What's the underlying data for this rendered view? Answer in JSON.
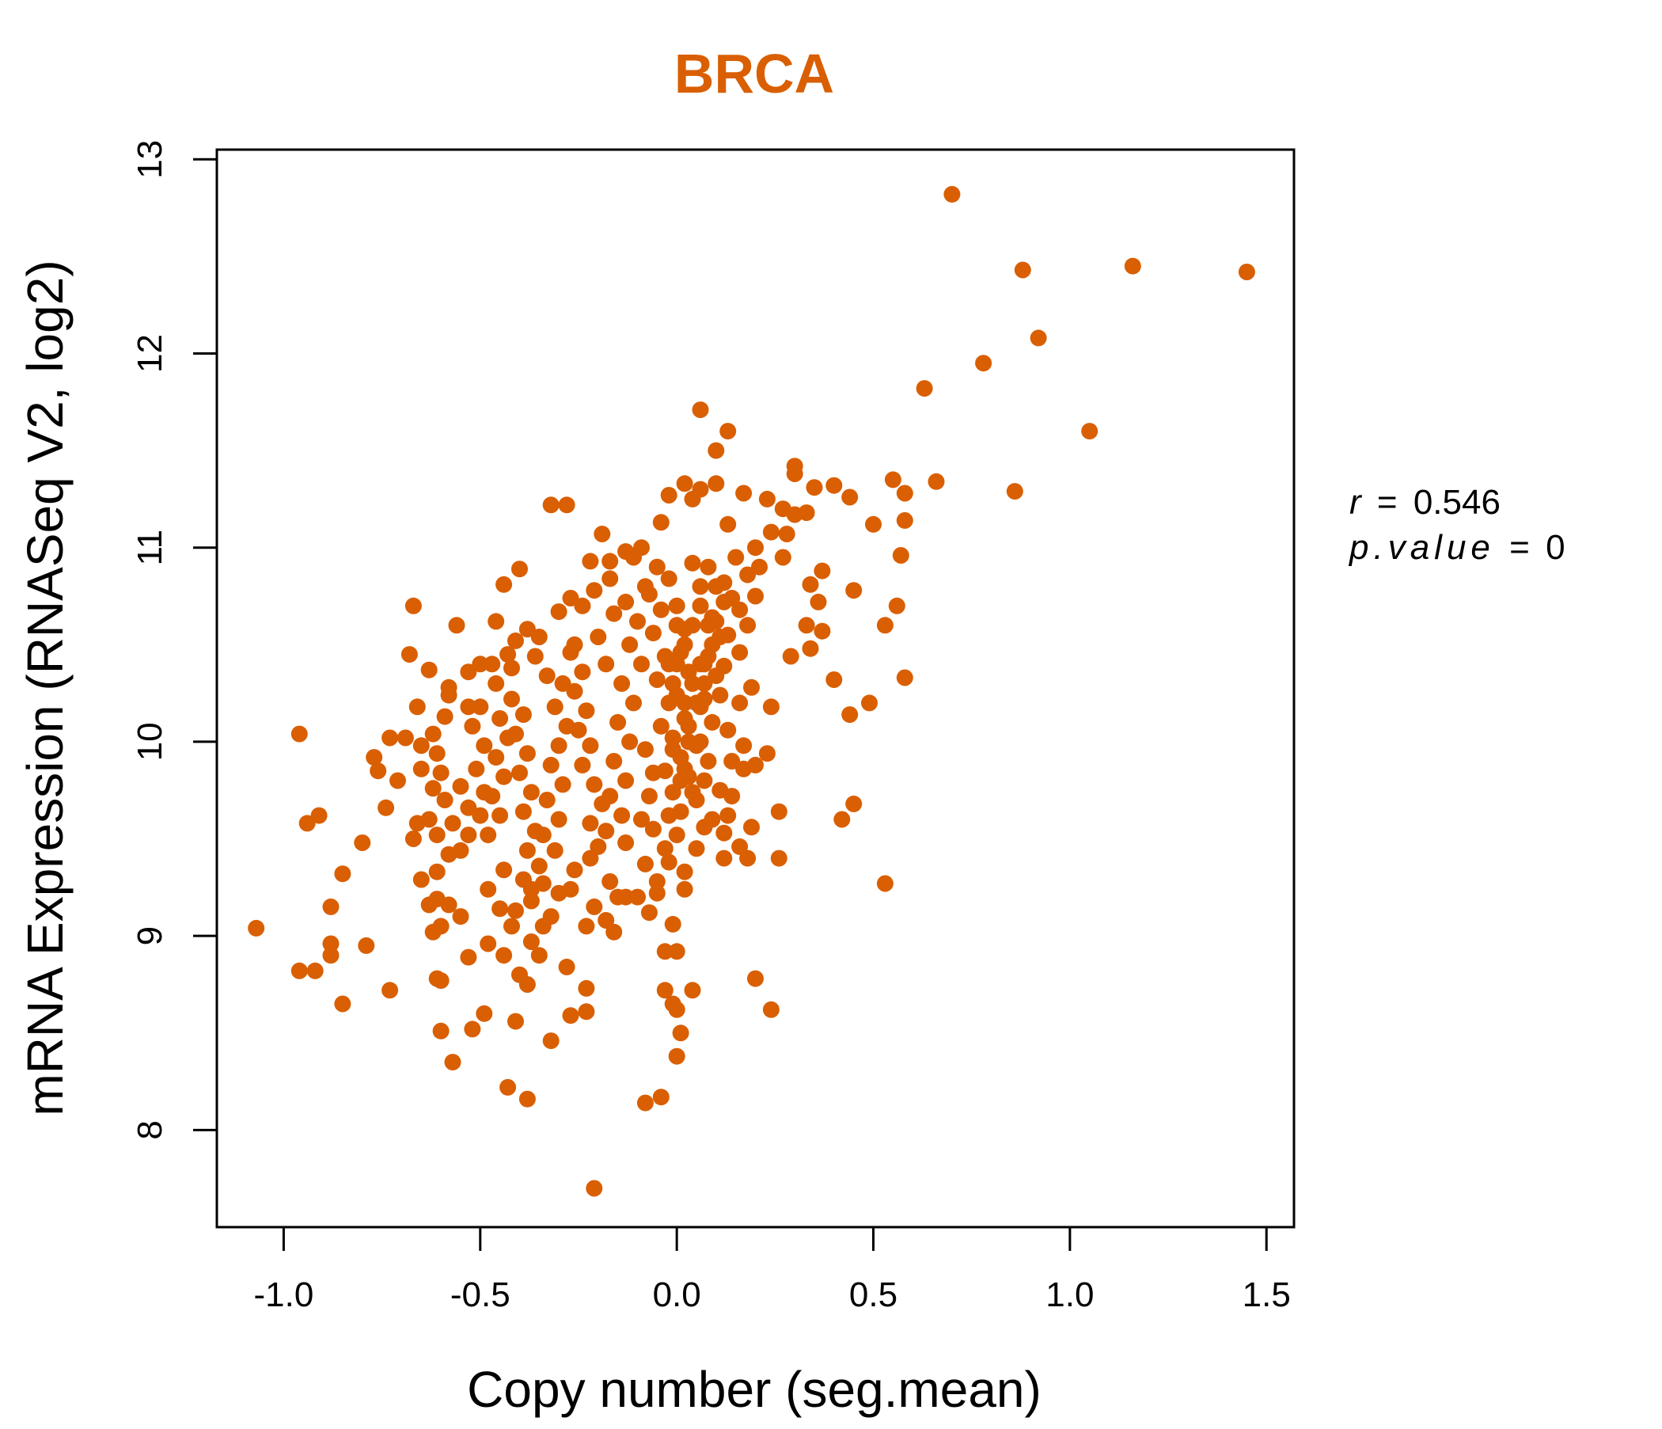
{
  "chart_data": {
    "type": "scatter",
    "title": "BRCA",
    "xlabel": "Copy number (seg.mean)",
    "ylabel": "mRNA Expression (RNASeq V2, log2)",
    "xlim": [
      -1.17,
      1.57
    ],
    "ylim": [
      7.5,
      13.05
    ],
    "x_ticks": [
      -1.0,
      -0.5,
      0.0,
      0.5,
      1.0,
      1.5
    ],
    "x_tick_labels": [
      "-1.0",
      "-0.5",
      "0.0",
      "0.5",
      "1.0",
      "1.5"
    ],
    "y_ticks": [
      8,
      9,
      10,
      11,
      12,
      13
    ],
    "y_tick_labels": [
      "8",
      "9",
      "10",
      "11",
      "12",
      "13"
    ],
    "grid": false,
    "legend": "none",
    "point_color": "#D95F02",
    "title_color": "#D95F02",
    "annotation": {
      "r_label": "r",
      "r_value": "0.546",
      "p_label": "p.value",
      "p_value": "0"
    },
    "points": [
      [
        0.7,
        12.82
      ],
      [
        0.88,
        12.43
      ],
      [
        1.16,
        12.45
      ],
      [
        1.45,
        12.42
      ],
      [
        0.92,
        12.08
      ],
      [
        0.78,
        11.95
      ],
      [
        0.63,
        11.82
      ],
      [
        1.05,
        11.6
      ],
      [
        0.06,
        11.71
      ],
      [
        0.13,
        11.6
      ],
      [
        0.1,
        11.5
      ],
      [
        0.3,
        11.42
      ],
      [
        0.55,
        11.35
      ],
      [
        0.66,
        11.34
      ],
      [
        0.86,
        11.29
      ],
      [
        0.58,
        11.28
      ],
      [
        0.4,
        11.32
      ],
      [
        0.44,
        11.26
      ],
      [
        0.5,
        11.12
      ],
      [
        0.58,
        11.14
      ],
      [
        0.57,
        10.96
      ],
      [
        0.45,
        10.78
      ],
      [
        0.56,
        10.7
      ],
      [
        0.53,
        10.6
      ],
      [
        0.58,
        10.33
      ],
      [
        0.49,
        10.2
      ],
      [
        0.44,
        10.14
      ],
      [
        0.4,
        10.32
      ],
      [
        0.45,
        9.68
      ],
      [
        0.42,
        9.6
      ],
      [
        0.53,
        9.27
      ],
      [
        -0.32,
        11.22
      ],
      [
        -0.28,
        11.22
      ],
      [
        -0.19,
        11.07
      ],
      [
        -0.22,
        10.93
      ],
      [
        -0.4,
        10.89
      ],
      [
        -0.44,
        10.81
      ],
      [
        -0.67,
        10.7
      ],
      [
        -0.56,
        10.6
      ],
      [
        -0.46,
        10.62
      ],
      [
        -0.68,
        10.45
      ],
      [
        -0.5,
        10.4
      ],
      [
        -0.63,
        10.37
      ],
      [
        -0.58,
        10.28
      ],
      [
        -0.66,
        10.18
      ],
      [
        -0.69,
        10.02
      ],
      [
        -0.73,
        10.02
      ],
      [
        -0.77,
        9.92
      ],
      [
        -0.96,
        10.04
      ],
      [
        -0.76,
        9.85
      ],
      [
        -0.71,
        9.8
      ],
      [
        -0.74,
        9.66
      ],
      [
        -0.94,
        9.58
      ],
      [
        -0.91,
        9.62
      ],
      [
        -0.8,
        9.48
      ],
      [
        -0.85,
        9.32
      ],
      [
        -0.88,
        9.15
      ],
      [
        -1.07,
        9.04
      ],
      [
        -0.88,
        8.96
      ],
      [
        -0.88,
        8.9
      ],
      [
        -0.79,
        8.95
      ],
      [
        -0.96,
        8.82
      ],
      [
        -0.92,
        8.82
      ],
      [
        -0.73,
        8.72
      ],
      [
        -0.85,
        8.65
      ],
      [
        -0.61,
        8.78
      ],
      [
        -0.6,
        8.77
      ],
      [
        -0.6,
        8.51
      ],
      [
        -0.52,
        8.52
      ],
      [
        -0.57,
        8.35
      ],
      [
        -0.49,
        8.6
      ],
      [
        -0.43,
        8.22
      ],
      [
        -0.38,
        8.16
      ],
      [
        -0.41,
        8.56
      ],
      [
        -0.32,
        8.46
      ],
      [
        -0.27,
        8.59
      ],
      [
        -0.23,
        8.61
      ],
      [
        -0.23,
        8.73
      ],
      [
        -0.28,
        8.84
      ],
      [
        -0.21,
        7.7
      ],
      [
        -0.08,
        8.14
      ],
      [
        -0.04,
        8.17
      ],
      [
        -0.03,
        8.72
      ],
      [
        -0.01,
        8.65
      ],
      [
        0.0,
        8.62
      ],
      [
        0.04,
        8.72
      ],
      [
        0.01,
        8.5
      ],
      [
        0.0,
        8.38
      ],
      [
        -0.01,
        9.06
      ],
      [
        -0.03,
        8.92
      ],
      [
        0.0,
        8.92
      ],
      [
        0.2,
        8.78
      ],
      [
        0.24,
        8.62
      ],
      [
        0.26,
        9.4
      ],
      [
        0.19,
        9.56
      ],
      [
        0.16,
        9.46
      ],
      [
        0.26,
        9.64
      ],
      [
        0.2,
        9.88
      ],
      [
        0.23,
        9.94
      ],
      [
        0.24,
        10.18
      ],
      [
        0.19,
        10.28
      ],
      [
        0.29,
        10.44
      ],
      [
        0.33,
        10.6
      ],
      [
        0.34,
        10.48
      ],
      [
        0.37,
        10.57
      ],
      [
        0.36,
        10.72
      ],
      [
        0.37,
        10.88
      ],
      [
        0.34,
        10.81
      ],
      [
        0.33,
        11.18
      ],
      [
        0.3,
        11.17
      ],
      [
        0.27,
        10.95
      ],
      [
        0.27,
        11.2
      ],
      [
        0.23,
        11.25
      ],
      [
        0.3,
        11.38
      ],
      [
        0.35,
        11.31
      ],
      [
        0.28,
        11.07
      ],
      [
        0.24,
        11.08
      ],
      [
        0.2,
        11.0
      ],
      [
        0.13,
        11.12
      ],
      [
        0.17,
        11.28
      ],
      [
        0.1,
        11.33
      ],
      [
        0.06,
        11.3
      ],
      [
        0.04,
        11.25
      ],
      [
        0.02,
        11.33
      ],
      [
        -0.02,
        11.27
      ],
      [
        -0.04,
        11.13
      ],
      [
        -0.09,
        11.0
      ],
      [
        -0.13,
        10.98
      ],
      [
        -0.11,
        10.95
      ],
      [
        -0.17,
        10.93
      ],
      [
        -0.17,
        10.84
      ],
      [
        -0.21,
        10.78
      ],
      [
        -0.24,
        10.7
      ],
      [
        -0.27,
        10.74
      ],
      [
        -0.3,
        10.67
      ],
      [
        -0.38,
        10.58
      ],
      [
        -0.41,
        10.52
      ],
      [
        -0.35,
        10.54
      ],
      [
        -0.43,
        10.45
      ],
      [
        -0.47,
        10.4
      ],
      [
        -0.53,
        10.36
      ],
      [
        -0.58,
        10.24
      ],
      [
        -0.53,
        10.18
      ],
      [
        -0.59,
        10.13
      ],
      [
        -0.62,
        10.04
      ],
      [
        -0.65,
        9.98
      ],
      [
        -0.61,
        9.94
      ],
      [
        -0.65,
        9.86
      ],
      [
        -0.6,
        9.84
      ],
      [
        -0.62,
        9.76
      ],
      [
        -0.55,
        9.77
      ],
      [
        -0.59,
        9.7
      ],
      [
        -0.53,
        9.66
      ],
      [
        -0.57,
        9.58
      ],
      [
        -0.53,
        9.52
      ],
      [
        -0.61,
        9.52
      ],
      [
        -0.67,
        9.5
      ],
      [
        -0.66,
        9.58
      ],
      [
        -0.63,
        9.6
      ],
      [
        -0.58,
        9.42
      ],
      [
        -0.55,
        9.44
      ],
      [
        -0.61,
        9.33
      ],
      [
        -0.65,
        9.29
      ],
      [
        -0.61,
        9.19
      ],
      [
        -0.63,
        9.16
      ],
      [
        -0.58,
        9.16
      ],
      [
        -0.55,
        9.1
      ],
      [
        -0.6,
        9.05
      ],
      [
        -0.62,
        9.02
      ],
      [
        -0.53,
        8.89
      ],
      [
        -0.48,
        8.96
      ],
      [
        -0.44,
        8.9
      ],
      [
        -0.37,
        8.97
      ],
      [
        -0.4,
        8.8
      ],
      [
        -0.38,
        8.75
      ],
      [
        -0.35,
        8.9
      ],
      [
        -0.34,
        9.05
      ],
      [
        -0.32,
        9.1
      ],
      [
        -0.37,
        9.18
      ],
      [
        -0.41,
        9.13
      ],
      [
        -0.45,
        9.14
      ],
      [
        -0.42,
        9.05
      ],
      [
        -0.48,
        9.24
      ],
      [
        -0.44,
        9.34
      ],
      [
        -0.39,
        9.29
      ],
      [
        -0.37,
        9.24
      ],
      [
        -0.34,
        9.27
      ],
      [
        -0.3,
        9.22
      ],
      [
        -0.27,
        9.24
      ],
      [
        -0.23,
        9.05
      ],
      [
        -0.21,
        9.15
      ],
      [
        -0.18,
        9.08
      ],
      [
        -0.16,
        9.02
      ],
      [
        -0.15,
        9.2
      ],
      [
        -0.17,
        9.28
      ],
      [
        -0.13,
        9.2
      ],
      [
        -0.1,
        9.2
      ],
      [
        -0.07,
        9.12
      ],
      [
        -0.05,
        9.22
      ],
      [
        -0.08,
        9.37
      ],
      [
        -0.05,
        9.28
      ],
      [
        -0.03,
        9.45
      ],
      [
        -0.06,
        9.55
      ],
      [
        -0.02,
        9.38
      ],
      [
        0.02,
        9.33
      ],
      [
        0.05,
        9.45
      ],
      [
        0.07,
        9.56
      ],
      [
        0.09,
        9.6
      ],
      [
        0.12,
        9.53
      ],
      [
        0.13,
        9.62
      ],
      [
        0.11,
        9.75
      ],
      [
        0.14,
        9.72
      ],
      [
        0.17,
        9.86
      ],
      [
        0.14,
        9.9
      ],
      [
        0.17,
        9.98
      ],
      [
        0.13,
        10.06
      ],
      [
        0.16,
        10.2
      ],
      [
        0.11,
        10.24
      ],
      [
        0.12,
        10.39
      ],
      [
        0.16,
        10.46
      ],
      [
        0.13,
        10.55
      ],
      [
        0.18,
        10.6
      ],
      [
        0.16,
        10.68
      ],
      [
        0.2,
        10.75
      ],
      [
        0.18,
        10.86
      ],
      [
        0.21,
        10.9
      ],
      [
        0.15,
        10.95
      ],
      [
        0.12,
        10.82
      ],
      [
        0.14,
        10.74
      ],
      [
        0.1,
        10.62
      ],
      [
        0.09,
        10.5
      ],
      [
        0.07,
        10.4
      ],
      [
        0.04,
        10.3
      ],
      [
        0.06,
        10.18
      ],
      [
        0.03,
        10.08
      ],
      [
        0.05,
        9.98
      ],
      [
        0.02,
        9.86
      ],
      [
        0.04,
        9.74
      ],
      [
        0.01,
        9.64
      ],
      [
        0.0,
        9.52
      ],
      [
        -0.02,
        9.62
      ],
      [
        -0.01,
        9.74
      ],
      [
        -0.03,
        9.85
      ],
      [
        -0.01,
        9.96
      ],
      [
        -0.04,
        10.08
      ],
      [
        -0.02,
        10.2
      ],
      [
        -0.05,
        10.32
      ],
      [
        -0.03,
        10.44
      ],
      [
        -0.06,
        10.56
      ],
      [
        -0.04,
        10.68
      ],
      [
        -0.07,
        10.76
      ],
      [
        -0.02,
        10.84
      ],
      [
        0.0,
        10.7
      ],
      [
        0.02,
        10.58
      ],
      [
        0.01,
        10.46
      ],
      [
        0.03,
        10.36
      ],
      [
        0.0,
        10.24
      ],
      [
        0.02,
        10.12
      ],
      [
        -0.01,
        10.02
      ],
      [
        0.01,
        9.92
      ],
      [
        0.03,
        9.82
      ],
      [
        0.05,
        9.7
      ],
      [
        0.07,
        9.8
      ],
      [
        0.08,
        9.9
      ],
      [
        0.06,
        10.0
      ],
      [
        0.09,
        10.1
      ],
      [
        0.07,
        10.22
      ],
      [
        0.1,
        10.34
      ],
      [
        0.08,
        10.44
      ],
      [
        0.11,
        10.54
      ],
      [
        0.09,
        10.64
      ],
      [
        0.12,
        10.72
      ],
      [
        0.1,
        10.8
      ],
      [
        0.08,
        10.9
      ],
      [
        0.06,
        10.8
      ],
      [
        0.04,
        10.92
      ],
      [
        -0.1,
        10.62
      ],
      [
        -0.12,
        10.5
      ],
      [
        -0.09,
        10.4
      ],
      [
        -0.14,
        10.3
      ],
      [
        -0.11,
        10.2
      ],
      [
        -0.15,
        10.1
      ],
      [
        -0.12,
        10.0
      ],
      [
        -0.16,
        9.9
      ],
      [
        -0.13,
        9.8
      ],
      [
        -0.17,
        9.72
      ],
      [
        -0.14,
        9.62
      ],
      [
        -0.18,
        9.54
      ],
      [
        -0.2,
        9.46
      ],
      [
        -0.22,
        9.58
      ],
      [
        -0.19,
        9.68
      ],
      [
        -0.21,
        9.78
      ],
      [
        -0.24,
        9.88
      ],
      [
        -0.22,
        9.98
      ],
      [
        -0.25,
        10.06
      ],
      [
        -0.23,
        10.16
      ],
      [
        -0.26,
        10.26
      ],
      [
        -0.24,
        10.36
      ],
      [
        -0.27,
        10.46
      ],
      [
        -0.29,
        10.3
      ],
      [
        -0.31,
        10.18
      ],
      [
        -0.28,
        10.08
      ],
      [
        -0.3,
        9.98
      ],
      [
        -0.32,
        9.88
      ],
      [
        -0.29,
        9.78
      ],
      [
        -0.33,
        9.7
      ],
      [
        -0.3,
        9.6
      ],
      [
        -0.34,
        9.52
      ],
      [
        -0.31,
        9.44
      ],
      [
        -0.35,
        9.36
      ],
      [
        -0.38,
        9.44
      ],
      [
        -0.36,
        9.54
      ],
      [
        -0.39,
        9.64
      ],
      [
        -0.37,
        9.74
      ],
      [
        -0.4,
        9.84
      ],
      [
        -0.38,
        9.94
      ],
      [
        -0.41,
        10.04
      ],
      [
        -0.39,
        10.14
      ],
      [
        -0.42,
        10.22
      ],
      [
        -0.45,
        10.12
      ],
      [
        -0.43,
        10.02
      ],
      [
        -0.46,
        9.92
      ],
      [
        -0.44,
        9.82
      ],
      [
        -0.47,
        9.72
      ],
      [
        -0.45,
        9.62
      ],
      [
        -0.48,
        9.52
      ],
      [
        -0.5,
        9.62
      ],
      [
        -0.49,
        9.74
      ],
      [
        -0.51,
        9.86
      ],
      [
        -0.49,
        9.98
      ],
      [
        -0.52,
        10.08
      ],
      [
        -0.5,
        10.18
      ],
      [
        -0.46,
        10.3
      ],
      [
        -0.42,
        10.38
      ],
      [
        -0.36,
        10.44
      ],
      [
        -0.33,
        10.34
      ],
      [
        -0.26,
        10.5
      ],
      [
        -0.2,
        10.54
      ],
      [
        -0.18,
        10.4
      ],
      [
        -0.16,
        10.66
      ],
      [
        -0.13,
        10.72
      ],
      [
        -0.08,
        10.8
      ],
      [
        -0.05,
        10.9
      ],
      [
        0.18,
        9.4
      ],
      [
        0.12,
        9.4
      ],
      [
        0.02,
        9.24
      ],
      [
        -0.26,
        9.34
      ],
      [
        -0.22,
        9.4
      ],
      [
        -0.13,
        9.48
      ],
      [
        -0.09,
        9.6
      ],
      [
        -0.07,
        9.72
      ],
      [
        -0.06,
        9.84
      ],
      [
        -0.08,
        9.96
      ],
      [
        0.0,
        10.4
      ],
      [
        0.0,
        10.6
      ],
      [
        0.02,
        10.5
      ],
      [
        -0.02,
        10.4
      ],
      [
        0.04,
        10.6
      ],
      [
        0.06,
        10.7
      ],
      [
        0.08,
        10.6
      ],
      [
        0.05,
        10.2
      ],
      [
        0.07,
        10.3
      ],
      [
        0.03,
        10.0
      ],
      [
        0.01,
        9.8
      ],
      [
        -0.01,
        10.3
      ],
      [
        0.02,
        10.2
      ],
      [
        0.06,
        10.4
      ]
    ]
  }
}
